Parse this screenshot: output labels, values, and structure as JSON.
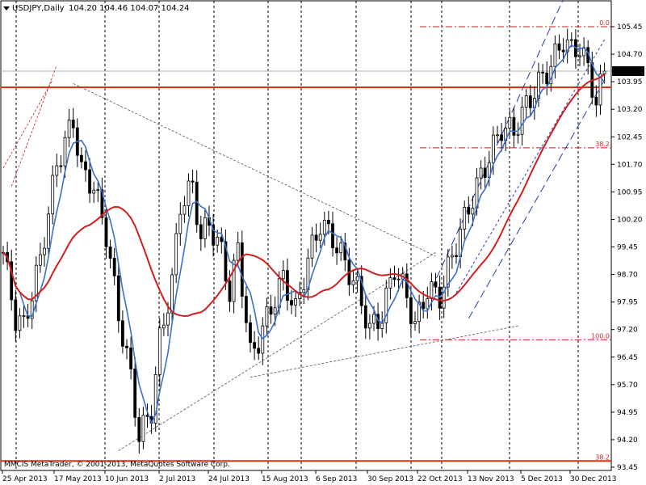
{
  "header": {
    "symbol": "USDJPY,Daily",
    "ohlc": "104.20 104.46 104.07 104.24",
    "menu_icon": "triangle-down-icon"
  },
  "copyright": "MMCIS MetaTrader, © 2001-2013, MetaQuotes Software Corp.",
  "colors": {
    "background": "#ffffff",
    "candle": "#000000",
    "fast_ma": "#3b6fd1",
    "slow_ma": "#d21e1e",
    "channel": "#1f3cb4",
    "fib": "#d21e1e",
    "support": "#e03010",
    "price_box": "#000000"
  },
  "chart_data": {
    "type": "candlestick",
    "ylim": [
      93.45,
      106.2
    ],
    "grid": "vertical dotted",
    "y_ticks": [
      "105.45",
      "104.70",
      "103.95",
      "103.20",
      "102.45",
      "101.70",
      "100.95",
      "100.20",
      "99.45",
      "98.70",
      "97.95",
      "97.20",
      "96.45",
      "95.70",
      "94.95",
      "94.20",
      "93.45"
    ],
    "x_ticks": [
      "25 Apr 2013",
      "17 May 2013",
      "10 Jun 2013",
      "2 Jul 2013",
      "24 Jul 2013",
      "15 Aug 2013",
      "6 Sep 2013",
      "30 Sep 2013",
      "22 Oct 2013",
      "13 Nov 2013",
      "5 Dec 2013",
      "30 Dec 2013"
    ],
    "current_price": "104.24",
    "current_price_value": 104.24,
    "horizontal_lines": {
      "resistance": 103.8,
      "support": 93.62
    },
    "fib_levels": [
      {
        "label": "0.0",
        "value": 105.45
      },
      {
        "label": "38.2",
        "value": 102.15
      },
      {
        "label": "100.0",
        "value": 96.92
      }
    ],
    "fib_bottom_label": {
      "label": "38.2",
      "value": 93.62
    },
    "series": [
      {
        "id": "fast_ma"
      },
      {
        "id": "slow_ma"
      }
    ],
    "anchors": [
      {
        "i": 0,
        "p": 99.3
      },
      {
        "i": 3,
        "p": 97.5
      },
      {
        "i": 5,
        "p": 97.3
      },
      {
        "i": 9,
        "p": 99.1
      },
      {
        "i": 13,
        "p": 101.7
      },
      {
        "i": 17,
        "p": 102.9
      },
      {
        "i": 19,
        "p": 101.5
      },
      {
        "i": 22,
        "p": 101.1
      },
      {
        "i": 25,
        "p": 99.8
      },
      {
        "i": 28,
        "p": 97.6
      },
      {
        "i": 31,
        "p": 95.9
      },
      {
        "i": 33,
        "p": 94.3
      },
      {
        "i": 36,
        "p": 95.0
      },
      {
        "i": 38,
        "p": 96.9
      },
      {
        "i": 41,
        "p": 98.5
      },
      {
        "i": 43,
        "p": 100.6
      },
      {
        "i": 46,
        "p": 101.1
      },
      {
        "i": 48,
        "p": 99.7
      },
      {
        "i": 50,
        "p": 100.1
      },
      {
        "i": 53,
        "p": 99.3
      },
      {
        "i": 55,
        "p": 98.2
      },
      {
        "i": 57,
        "p": 99.4
      },
      {
        "i": 60,
        "p": 96.5
      },
      {
        "i": 62,
        "p": 96.9
      },
      {
        "i": 65,
        "p": 97.8
      },
      {
        "i": 68,
        "p": 98.6
      },
      {
        "i": 71,
        "p": 97.7
      },
      {
        "i": 74,
        "p": 99.1
      },
      {
        "i": 77,
        "p": 100.1
      },
      {
        "i": 80,
        "p": 99.7
      },
      {
        "i": 83,
        "p": 99.0
      },
      {
        "i": 86,
        "p": 98.3
      },
      {
        "i": 89,
        "p": 97.2
      },
      {
        "i": 92,
        "p": 97.6
      },
      {
        "i": 95,
        "p": 98.9
      },
      {
        "i": 98,
        "p": 98.1
      },
      {
        "i": 100,
        "p": 97.3
      },
      {
        "i": 103,
        "p": 98.3
      },
      {
        "i": 106,
        "p": 98.1
      },
      {
        "i": 109,
        "p": 99.2
      },
      {
        "i": 112,
        "p": 100.2
      },
      {
        "i": 115,
        "p": 101.1
      },
      {
        "i": 118,
        "p": 101.9
      },
      {
        "i": 121,
        "p": 102.7
      },
      {
        "i": 124,
        "p": 102.6
      },
      {
        "i": 127,
        "p": 103.3
      },
      {
        "i": 130,
        "p": 103.9
      },
      {
        "i": 133,
        "p": 104.4
      },
      {
        "i": 136,
        "p": 105.1
      },
      {
        "i": 138,
        "p": 104.8
      },
      {
        "i": 140,
        "p": 104.9
      },
      {
        "i": 142,
        "p": 104.3
      },
      {
        "i": 144,
        "p": 103.4
      },
      {
        "i": 146,
        "p": 104.24
      }
    ]
  }
}
